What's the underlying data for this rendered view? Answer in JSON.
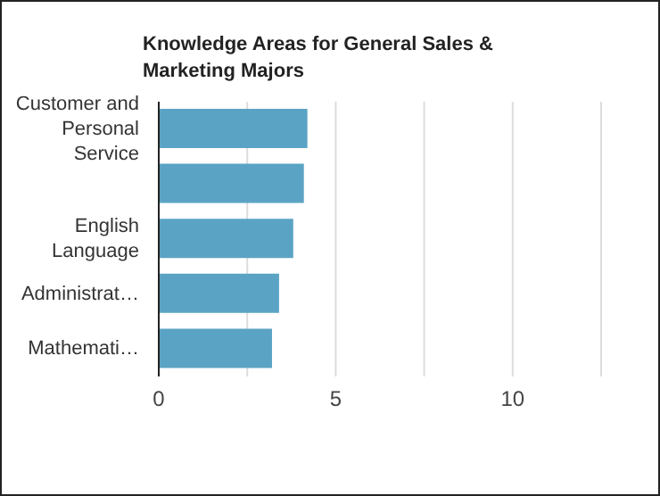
{
  "chart_data": {
    "type": "bar",
    "orientation": "horizontal",
    "title": "Knowledge Areas for General Sales & Marketing Majors",
    "categories": [
      "Customer and Personal Service",
      null,
      "English Language",
      "Administrat…",
      "Mathemati…"
    ],
    "values": [
      4.2,
      4.1,
      3.8,
      3.4,
      3.2
    ],
    "color": "#5ba3c4",
    "xlim": [
      0,
      12.5
    ],
    "xticks": [
      0,
      {
        "value": 2.5,
        "label": null
      },
      5,
      {
        "value": 7.5,
        "label": null
      },
      10,
      {
        "value": 12.5,
        "label": null
      }
    ],
    "grid": "x"
  }
}
